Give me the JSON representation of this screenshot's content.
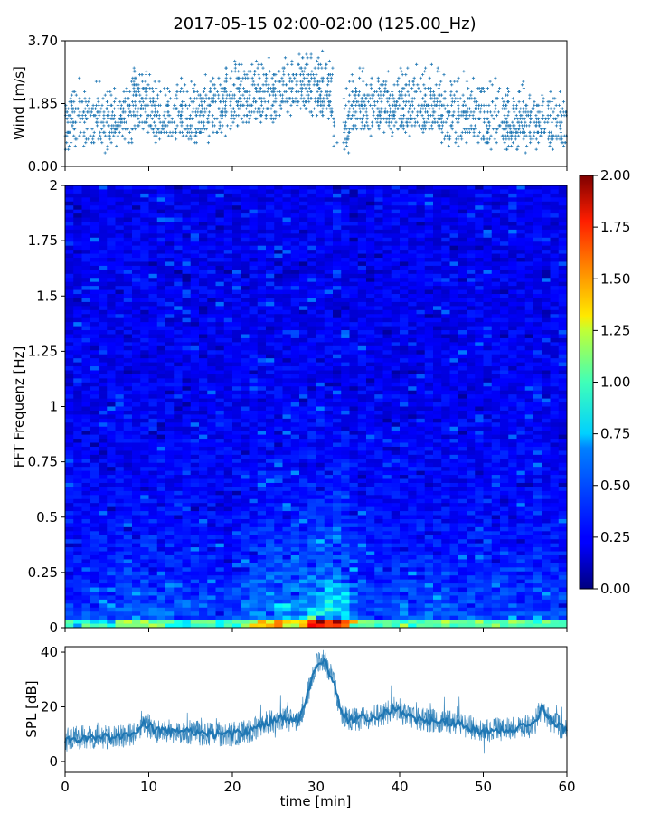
{
  "title": "2017-05-15 02:00-02:00 (125.00_Hz)",
  "colors": {
    "series": "#1f77b4",
    "colormap": "jet"
  },
  "chart_data": [
    {
      "type": "scatter",
      "ylabel": "Wind [m/s]",
      "xlim": [
        0,
        60
      ],
      "ylim": [
        0,
        3.7
      ],
      "yticks": [
        "0.00",
        "1.85",
        "3.70"
      ],
      "yticks_values": [
        0,
        1.85,
        3.7
      ],
      "marker": "+",
      "description_values": {
        "baseline_m_s": 1.1,
        "range_m_s": [
          0.3,
          3.65
        ],
        "notable_gap_min": [
          32,
          33
        ]
      }
    },
    {
      "type": "heatmap",
      "ylabel": "FFT Frequenz [Hz]",
      "xlim": [
        0,
        60
      ],
      "ylim": [
        0,
        2
      ],
      "yticks": [
        "0",
        "0.25",
        "0.5",
        "0.75",
        "1",
        "1.25",
        "1.5",
        "1.75",
        "2"
      ],
      "yticks_values": [
        0,
        0.25,
        0.5,
        0.75,
        1,
        1.25,
        1.5,
        1.75,
        2
      ],
      "colorbar": {
        "range": [
          0,
          2
        ],
        "ticks": [
          "0.00",
          "0.25",
          "0.50",
          "0.75",
          "1.00",
          "1.25",
          "1.50",
          "1.75",
          "2.00"
        ]
      },
      "intensity_profile": {
        "time_min": [
          0,
          5,
          8,
          10,
          15,
          20,
          23,
          25,
          28,
          30,
          33,
          35,
          40,
          45,
          50,
          55,
          60
        ],
        "level": [
          0.25,
          0.3,
          0.45,
          0.4,
          0.35,
          0.3,
          0.55,
          0.7,
          0.6,
          1.0,
          0.95,
          0.35,
          0.4,
          0.4,
          0.35,
          0.4,
          0.35
        ]
      }
    },
    {
      "type": "line",
      "ylabel": "SPL [dB]",
      "xlabel": "time [min]",
      "xlim": [
        0,
        60
      ],
      "ylim": [
        -4,
        42
      ],
      "yticks": [
        "0",
        "20",
        "40"
      ],
      "yticks_values": [
        0,
        20,
        40
      ],
      "xticks": [
        "0",
        "10",
        "20",
        "30",
        "40",
        "50",
        "60"
      ],
      "xticks_values": [
        0,
        10,
        20,
        30,
        40,
        50,
        60
      ],
      "x": [
        0,
        3,
        6,
        8,
        9.5,
        11,
        14,
        17,
        20,
        22,
        24,
        26,
        28,
        29,
        30,
        31,
        32,
        33,
        34,
        36,
        38,
        39.5,
        41,
        44,
        47,
        50,
        53,
        56,
        57,
        58,
        60
      ],
      "y": [
        8,
        9,
        9,
        10,
        14,
        11,
        11,
        10,
        10,
        11,
        14,
        16,
        15,
        25,
        35,
        37,
        30,
        18,
        15,
        16,
        17,
        20,
        16,
        15,
        14,
        11,
        12,
        13,
        20,
        15,
        11
      ]
    }
  ]
}
